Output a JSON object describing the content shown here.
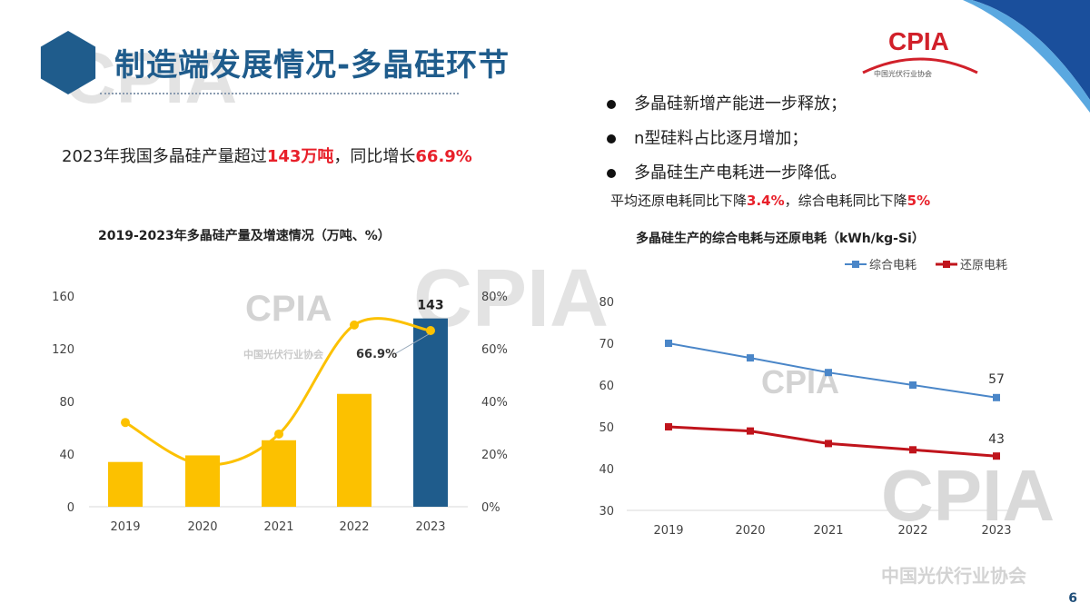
{
  "slide": {
    "title": "制造端发展情况-多晶硅环节",
    "headline_prefix": "2023年我国多晶硅产量超过",
    "headline_value1": "143万吨",
    "headline_mid": "，同比增长",
    "headline_value2": "66.9%",
    "bullets": [
      "多晶硅新增产能进一步释放；",
      "n型硅料占比逐月增加；",
      "多晶硅生产电耗进一步降低。"
    ],
    "sub_prefix": "平均还原电耗同比下降",
    "sub_value1": "3.4%",
    "sub_mid": "，综合电耗同比下降",
    "sub_value2": "5%",
    "logo": "CPIA",
    "logo_sub": "中国光伏行业协会",
    "watermark": "CPIA",
    "watermark_sub": "中国光伏行业协会",
    "page_number": "6",
    "colors": {
      "brand_blue": "#1f5c8c",
      "highlight_red": "#e8202a"
    }
  },
  "chart_data": [
    {
      "type": "bar",
      "title": "2019-2023年多晶硅产量及增速情况（万吨、%）",
      "categories": [
        "2019",
        "2020",
        "2021",
        "2022",
        "2023"
      ],
      "series": [
        {
          "kind": "bar",
          "axis": "left",
          "values": [
            34,
            39,
            50.5,
            85.7,
            143
          ],
          "colors": [
            "#fcc100",
            "#fcc100",
            "#fcc100",
            "#fcc100",
            "#1f5c8c"
          ]
        },
        {
          "kind": "smooth-line",
          "axis": "right",
          "values": [
            32,
            16,
            27.6,
            69,
            66.9
          ],
          "color": "#fcc100"
        }
      ],
      "ylim": [
        0,
        160
      ],
      "yticks": [
        "0",
        "40",
        "80",
        "120",
        "160"
      ],
      "y2lim": [
        0,
        80
      ],
      "y2ticks": [
        "0%",
        "20%",
        "40%",
        "60%",
        "80%"
      ],
      "data_labels": {
        "bar_2023": "143",
        "line_2023": "66.9%"
      },
      "grid": false
    },
    {
      "type": "line",
      "title": "多晶硅生产的综合电耗与还原电耗（kWh/kg-Si）",
      "categories": [
        "2019",
        "2020",
        "2021",
        "2022",
        "2023"
      ],
      "series": [
        {
          "name": "综合电耗",
          "values": [
            70,
            66.5,
            63,
            60,
            57
          ],
          "color": "#4a86c8"
        },
        {
          "name": "还原电耗",
          "values": [
            50,
            49,
            46,
            44.5,
            43
          ],
          "color": "#c0141c"
        }
      ],
      "ylim": [
        30,
        80
      ],
      "yticks": [
        "30",
        "40",
        "50",
        "60",
        "70",
        "80"
      ],
      "data_labels": {
        "blue_2023": "57",
        "red_2023": "43"
      },
      "legend": "top-right",
      "grid": false
    }
  ]
}
